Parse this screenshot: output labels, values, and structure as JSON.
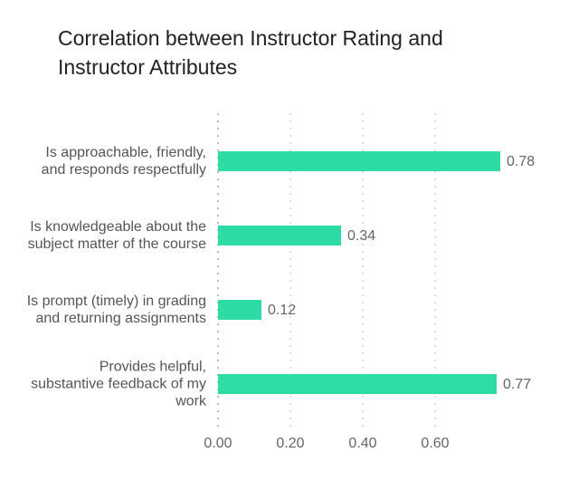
{
  "chart_data": {
    "type": "hbar",
    "title": "Correlation between Instructor Rating and Instructor Attributes",
    "categories": [
      "Is approachable, friendly, and responds respectfully",
      "Is knowledgeable about the subject matter of the course",
      "Is prompt (timely) in grading and returning assignments",
      "Provides helpful, substantive feedback of my work"
    ],
    "values": [
      0.78,
      0.34,
      0.12,
      0.77
    ],
    "color": "#2ddba6",
    "xlim": [
      0,
      0.8
    ],
    "xticks": [
      {
        "value": 0,
        "label": "0.00"
      },
      {
        "value": 0.2,
        "label": "0.20"
      },
      {
        "value": 0.4,
        "label": "0.40"
      },
      {
        "value": 0.6,
        "label": "0.60"
      }
    ],
    "grid": true
  }
}
